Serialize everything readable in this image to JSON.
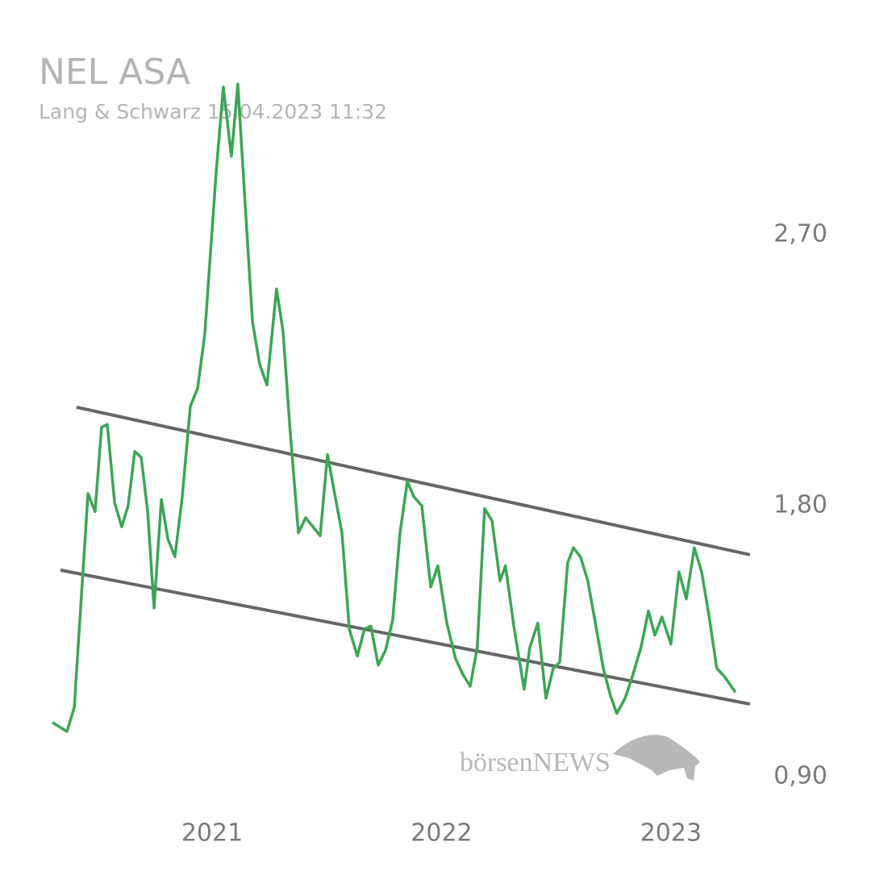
{
  "chart_data": {
    "type": "line",
    "title": "NEL ASA",
    "subtitle": "Lang & Schwarz 15.04.2023 11:32",
    "watermark": "börsenNEWS",
    "x": [
      2020.304,
      2020.367,
      2020.399,
      2020.427,
      2020.459,
      2020.49,
      2020.518,
      2020.543,
      2020.575,
      2020.606,
      2020.634,
      2020.663,
      2020.691,
      2020.719,
      2020.747,
      2020.779,
      2020.807,
      2020.838,
      2020.87,
      2020.905,
      2020.937,
      2020.968,
      2021.018,
      2021.049,
      2021.084,
      2021.112,
      2021.144,
      2021.176,
      2021.207,
      2021.239,
      2021.281,
      2021.309,
      2021.341,
      2021.376,
      2021.408,
      2021.439,
      2021.471,
      2021.503,
      2021.534,
      2021.566,
      2021.598,
      2021.633,
      2021.664,
      2021.692,
      2021.724,
      2021.756,
      2021.787,
      2021.819,
      2021.851,
      2021.879,
      2021.914,
      2021.953,
      2021.984,
      2022.023,
      2022.062,
      2022.093,
      2022.125,
      2022.156,
      2022.188,
      2022.22,
      2022.255,
      2022.279,
      2022.315,
      2022.36,
      2022.385,
      2022.42,
      2022.455,
      2022.487,
      2022.515,
      2022.55,
      2022.575,
      2022.606,
      2022.638,
      2022.673,
      2022.705,
      2022.736,
      2022.764,
      2022.8,
      2022.831,
      2022.87,
      2022.902,
      2022.93,
      2022.961,
      2023.0,
      2023.035,
      2023.067,
      2023.102,
      2023.134,
      2023.165,
      2023.2,
      2023.236,
      2023.281
    ],
    "series": [
      {
        "color": "#3aa655",
        "values": [
          1.08,
          1.05,
          1.13,
          1.46,
          1.84,
          1.78,
          2.06,
          2.07,
          1.81,
          1.73,
          1.8,
          1.98,
          1.96,
          1.78,
          1.46,
          1.82,
          1.69,
          1.63,
          1.83,
          2.13,
          2.19,
          2.37,
          2.91,
          3.19,
          2.96,
          3.2,
          2.8,
          2.41,
          2.27,
          2.2,
          2.52,
          2.38,
          2.04,
          1.71,
          1.76,
          1.73,
          1.7,
          1.97,
          1.84,
          1.71,
          1.39,
          1.3,
          1.39,
          1.4,
          1.27,
          1.32,
          1.42,
          1.71,
          1.88,
          1.83,
          1.8,
          1.53,
          1.6,
          1.41,
          1.29,
          1.24,
          1.2,
          1.33,
          1.79,
          1.75,
          1.55,
          1.6,
          1.4,
          1.19,
          1.33,
          1.41,
          1.16,
          1.26,
          1.28,
          1.61,
          1.66,
          1.63,
          1.55,
          1.4,
          1.26,
          1.17,
          1.11,
          1.16,
          1.23,
          1.33,
          1.45,
          1.37,
          1.43,
          1.34,
          1.58,
          1.49,
          1.66,
          1.58,
          1.44,
          1.26,
          1.23,
          1.18
        ]
      }
    ],
    "trendlines": [
      {
        "color": "#666666",
        "x": [
          2020.409,
          2023.344
        ],
        "values": [
          2.127,
          1.637
        ]
      },
      {
        "color": "#666666",
        "x": [
          2020.339,
          2023.344
        ],
        "values": [
          1.586,
          1.141
        ]
      }
    ],
    "xlim": [
      2020.216,
      2023.38
    ],
    "xticks": [
      2021,
      2022,
      2023
    ],
    "ylim": [
      0.8,
      3.35
    ],
    "yticks": [
      {
        "value": 0.9,
        "label": "0,90"
      },
      {
        "value": 1.8,
        "label": "1,80"
      },
      {
        "value": 2.7,
        "label": "2,70"
      }
    ],
    "grid": false
  }
}
